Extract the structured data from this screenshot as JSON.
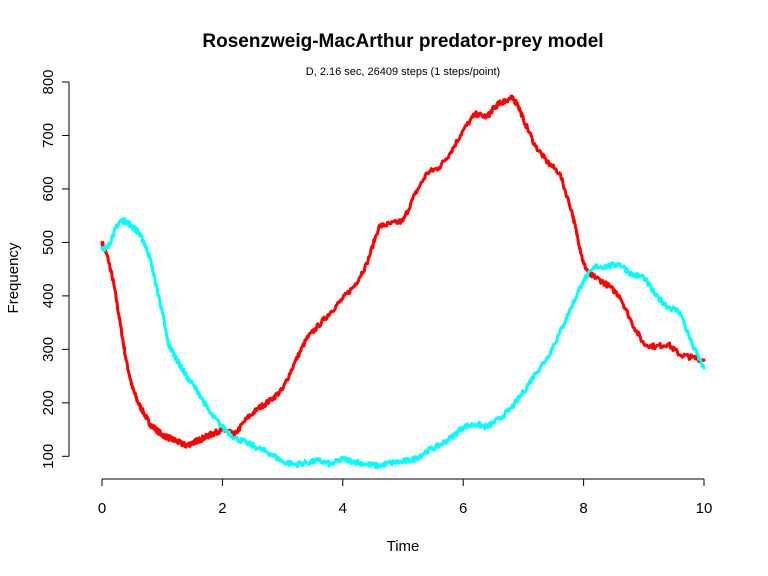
{
  "chart_data": {
    "type": "line",
    "title": "Rosenzweig-MacArthur predator-prey model",
    "subtitle": "D, 2.16 sec, 26409 steps (1 steps/point)",
    "xlabel": "Time",
    "ylabel": "Frequency",
    "xlim": [
      0,
      10
    ],
    "ylim": [
      80,
      800
    ],
    "x_ticks": [
      0,
      2,
      4,
      6,
      8,
      10
    ],
    "y_ticks": [
      100,
      200,
      300,
      400,
      500,
      600,
      700,
      800
    ],
    "grid": false,
    "legend": "none",
    "series": [
      {
        "color": "#ff0000",
        "x": [
          0.0,
          0.1,
          0.2,
          0.3,
          0.4,
          0.5,
          0.6,
          0.7,
          0.8,
          0.9,
          1.0,
          1.1,
          1.2,
          1.3,
          1.4,
          1.5,
          1.6,
          1.7,
          1.8,
          1.9,
          2.0,
          2.1,
          2.2,
          2.4,
          2.6,
          2.8,
          3.0,
          3.2,
          3.4,
          3.6,
          3.8,
          4.0,
          4.2,
          4.4,
          4.6,
          4.8,
          5.0,
          5.2,
          5.4,
          5.6,
          5.8,
          6.0,
          6.2,
          6.4,
          6.5,
          6.6,
          6.7,
          6.8,
          6.9,
          7.0,
          7.2,
          7.4,
          7.6,
          7.8,
          7.9,
          8.0,
          8.1,
          8.2,
          8.4,
          8.6,
          8.8,
          9.0,
          9.2,
          9.4,
          9.6,
          9.8,
          10.0
        ],
        "values": [
          500,
          470,
          420,
          350,
          280,
          230,
          200,
          180,
          160,
          150,
          140,
          135,
          130,
          125,
          120,
          125,
          130,
          135,
          140,
          145,
          150,
          145,
          140,
          170,
          190,
          205,
          225,
          275,
          320,
          345,
          370,
          395,
          420,
          460,
          530,
          535,
          540,
          590,
          630,
          640,
          670,
          710,
          740,
          735,
          750,
          760,
          765,
          770,
          760,
          730,
          680,
          650,
          630,
          560,
          510,
          460,
          440,
          435,
          420,
          400,
          350,
          310,
          305,
          310,
          290,
          285,
          280
        ]
      },
      {
        "color": "#00ffff",
        "x": [
          0.0,
          0.1,
          0.2,
          0.3,
          0.4,
          0.5,
          0.6,
          0.7,
          0.8,
          0.9,
          1.0,
          1.1,
          1.2,
          1.3,
          1.4,
          1.6,
          1.8,
          2.0,
          2.2,
          2.4,
          2.6,
          2.8,
          3.0,
          3.2,
          3.4,
          3.6,
          3.8,
          4.0,
          4.2,
          4.4,
          4.6,
          4.8,
          5.0,
          5.2,
          5.4,
          5.6,
          5.8,
          6.0,
          6.2,
          6.4,
          6.6,
          6.8,
          7.0,
          7.2,
          7.4,
          7.6,
          7.8,
          8.0,
          8.2,
          8.4,
          8.6,
          8.8,
          9.0,
          9.2,
          9.4,
          9.6,
          9.8,
          10.0
        ],
        "values": [
          490,
          490,
          520,
          540,
          540,
          530,
          520,
          500,
          470,
          420,
          370,
          310,
          290,
          270,
          250,
          220,
          180,
          155,
          135,
          125,
          115,
          105,
          90,
          85,
          88,
          92,
          85,
          95,
          90,
          85,
          82,
          88,
          90,
          95,
          110,
          120,
          135,
          155,
          160,
          155,
          170,
          190,
          220,
          255,
          285,
          330,
          380,
          430,
          455,
          455,
          460,
          440,
          435,
          400,
          380,
          370,
          310,
          265
        ]
      }
    ]
  }
}
